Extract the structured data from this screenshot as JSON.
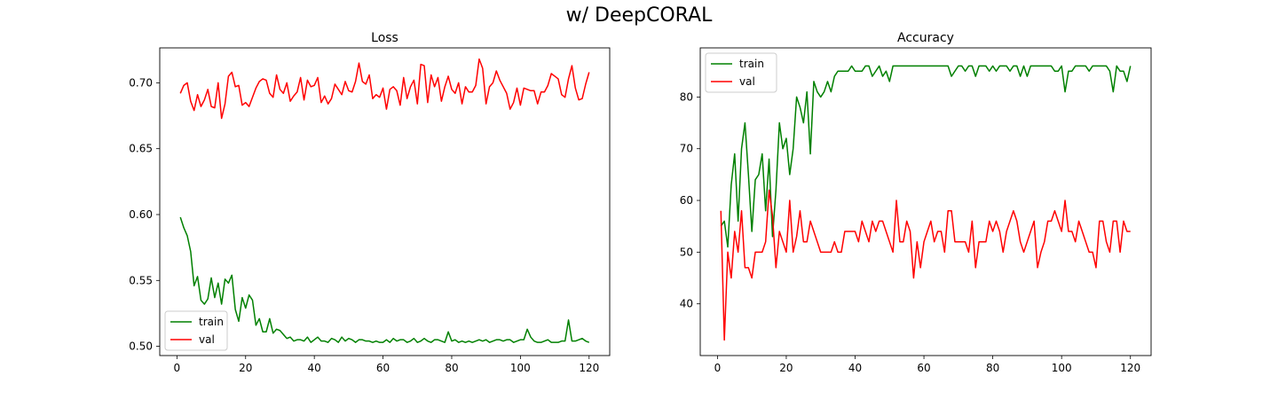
{
  "figure": {
    "title": "w/ DeepCORAL"
  },
  "chart_data": [
    {
      "type": "line",
      "title": "Loss",
      "xlabel": "",
      "ylabel": "",
      "xlim": [
        -5,
        126
      ],
      "ylim": [
        0.493,
        0.7265
      ],
      "xticks": [
        0,
        20,
        40,
        60,
        80,
        100,
        120
      ],
      "yticks": [
        0.5,
        0.55,
        0.6,
        0.65,
        0.7
      ],
      "ytick_labels": [
        "0.50",
        "0.55",
        "0.60",
        "0.65",
        "0.70"
      ],
      "grid": false,
      "legend": "lower-left",
      "x": [
        1,
        2,
        3,
        4,
        5,
        6,
        7,
        8,
        9,
        10,
        11,
        12,
        13,
        14,
        15,
        16,
        17,
        18,
        19,
        20,
        21,
        22,
        23,
        24,
        25,
        26,
        27,
        28,
        29,
        30,
        31,
        32,
        33,
        34,
        35,
        36,
        37,
        38,
        39,
        40,
        41,
        42,
        43,
        44,
        45,
        46,
        47,
        48,
        49,
        50,
        51,
        52,
        53,
        54,
        55,
        56,
        57,
        58,
        59,
        60,
        61,
        62,
        63,
        64,
        65,
        66,
        67,
        68,
        69,
        70,
        71,
        72,
        73,
        74,
        75,
        76,
        77,
        78,
        79,
        80,
        81,
        82,
        83,
        84,
        85,
        86,
        87,
        88,
        89,
        90,
        91,
        92,
        93,
        94,
        95,
        96,
        97,
        98,
        99,
        100,
        101,
        102,
        103,
        104,
        105,
        106,
        107,
        108,
        109,
        110,
        111,
        112,
        113,
        114,
        115,
        116,
        117,
        118,
        119,
        120
      ],
      "series": [
        {
          "name": "train",
          "color": "#008000",
          "values": [
            0.598,
            0.59,
            0.584,
            0.572,
            0.546,
            0.553,
            0.535,
            0.532,
            0.536,
            0.552,
            0.537,
            0.548,
            0.532,
            0.551,
            0.548,
            0.554,
            0.528,
            0.519,
            0.537,
            0.529,
            0.539,
            0.535,
            0.516,
            0.521,
            0.511,
            0.511,
            0.521,
            0.51,
            0.513,
            0.512,
            0.509,
            0.506,
            0.507,
            0.504,
            0.505,
            0.505,
            0.504,
            0.507,
            0.503,
            0.505,
            0.507,
            0.504,
            0.504,
            0.503,
            0.506,
            0.505,
            0.503,
            0.507,
            0.504,
            0.506,
            0.505,
            0.503,
            0.505,
            0.505,
            0.504,
            0.504,
            0.503,
            0.504,
            0.503,
            0.503,
            0.505,
            0.503,
            0.506,
            0.504,
            0.505,
            0.505,
            0.503,
            0.504,
            0.506,
            0.503,
            0.504,
            0.506,
            0.504,
            0.503,
            0.505,
            0.505,
            0.504,
            0.503,
            0.511,
            0.504,
            0.505,
            0.503,
            0.504,
            0.503,
            0.504,
            0.503,
            0.504,
            0.505,
            0.504,
            0.505,
            0.503,
            0.504,
            0.505,
            0.505,
            0.504,
            0.505,
            0.505,
            0.503,
            0.504,
            0.505,
            0.505,
            0.513,
            0.507,
            0.504,
            0.503,
            0.503,
            0.504,
            0.505,
            0.503,
            0.503,
            0.503,
            0.504,
            0.504,
            0.52,
            0.504,
            0.504,
            0.505,
            0.506,
            0.504,
            0.503
          ]
        },
        {
          "name": "val",
          "color": "#ff0000",
          "values": [
            0.692,
            0.698,
            0.7,
            0.686,
            0.679,
            0.691,
            0.682,
            0.687,
            0.695,
            0.682,
            0.681,
            0.7,
            0.673,
            0.684,
            0.705,
            0.708,
            0.697,
            0.698,
            0.683,
            0.685,
            0.682,
            0.689,
            0.696,
            0.701,
            0.703,
            0.702,
            0.692,
            0.689,
            0.706,
            0.695,
            0.692,
            0.7,
            0.686,
            0.69,
            0.693,
            0.704,
            0.687,
            0.702,
            0.697,
            0.698,
            0.704,
            0.685,
            0.69,
            0.684,
            0.688,
            0.699,
            0.695,
            0.691,
            0.701,
            0.694,
            0.693,
            0.701,
            0.715,
            0.701,
            0.699,
            0.706,
            0.688,
            0.691,
            0.689,
            0.696,
            0.68,
            0.695,
            0.697,
            0.694,
            0.683,
            0.704,
            0.688,
            0.697,
            0.702,
            0.684,
            0.714,
            0.713,
            0.685,
            0.706,
            0.697,
            0.704,
            0.686,
            0.697,
            0.705,
            0.695,
            0.692,
            0.7,
            0.684,
            0.697,
            0.693,
            0.693,
            0.698,
            0.718,
            0.711,
            0.684,
            0.697,
            0.7,
            0.709,
            0.702,
            0.697,
            0.692,
            0.68,
            0.685,
            0.696,
            0.683,
            0.696,
            0.695,
            0.694,
            0.694,
            0.684,
            0.693,
            0.693,
            0.698,
            0.707,
            0.705,
            0.703,
            0.691,
            0.689,
            0.703,
            0.713,
            0.696,
            0.687,
            0.688,
            0.699,
            0.708
          ]
        }
      ]
    },
    {
      "type": "line",
      "title": "Accuracy",
      "xlabel": "",
      "ylabel": "",
      "xlim": [
        -5,
        126
      ],
      "ylim": [
        30,
        89.5
      ],
      "xticks": [
        0,
        20,
        40,
        60,
        80,
        100,
        120
      ],
      "yticks": [
        40,
        50,
        60,
        70,
        80
      ],
      "ytick_labels": [
        "40",
        "50",
        "60",
        "70",
        "80"
      ],
      "grid": false,
      "legend": "upper-left",
      "x": [
        1,
        2,
        3,
        4,
        5,
        6,
        7,
        8,
        9,
        10,
        11,
        12,
        13,
        14,
        15,
        16,
        17,
        18,
        19,
        20,
        21,
        22,
        23,
        24,
        25,
        26,
        27,
        28,
        29,
        30,
        31,
        32,
        33,
        34,
        35,
        36,
        37,
        38,
        39,
        40,
        41,
        42,
        43,
        44,
        45,
        46,
        47,
        48,
        49,
        50,
        51,
        52,
        53,
        54,
        55,
        56,
        57,
        58,
        59,
        60,
        61,
        62,
        63,
        64,
        65,
        66,
        67,
        68,
        69,
        70,
        71,
        72,
        73,
        74,
        75,
        76,
        77,
        78,
        79,
        80,
        81,
        82,
        83,
        84,
        85,
        86,
        87,
        88,
        89,
        90,
        91,
        92,
        93,
        94,
        95,
        96,
        97,
        98,
        99,
        100,
        101,
        102,
        103,
        104,
        105,
        106,
        107,
        108,
        109,
        110,
        111,
        112,
        113,
        114,
        115,
        116,
        117,
        118,
        119,
        120
      ],
      "series": [
        {
          "name": "train",
          "color": "#008000",
          "values": [
            55,
            56,
            51,
            63,
            69,
            56,
            70,
            75,
            65,
            54,
            64,
            65,
            69,
            58,
            68,
            53,
            62,
            75,
            70,
            72,
            65,
            70,
            80,
            78,
            75,
            81,
            69,
            83,
            81,
            80,
            81,
            83,
            81,
            84,
            85,
            85,
            85,
            85,
            86,
            85,
            85,
            85,
            86,
            86,
            84,
            85,
            86,
            84,
            85,
            83,
            86,
            86,
            86,
            86,
            86,
            86,
            86,
            86,
            86,
            86,
            86,
            86,
            86,
            86,
            86,
            86,
            86,
            84,
            85,
            86,
            86,
            85,
            86,
            86,
            84,
            86,
            86,
            86,
            85,
            86,
            85,
            86,
            86,
            86,
            85,
            86,
            86,
            84,
            86,
            84,
            86,
            86,
            86,
            86,
            86,
            86,
            86,
            85,
            85,
            86,
            81,
            85,
            85,
            86,
            86,
            86,
            86,
            85,
            86,
            86,
            86,
            86,
            86,
            85,
            81,
            86,
            85,
            85,
            83,
            86
          ]
        },
        {
          "name": "val",
          "color": "#ff0000",
          "values": [
            58,
            33,
            50,
            45,
            54,
            50,
            58,
            47,
            47,
            45,
            50,
            50,
            50,
            52,
            62,
            57,
            47,
            54,
            52,
            50,
            60,
            50,
            53,
            58,
            52,
            52,
            56,
            54,
            52,
            50,
            50,
            50,
            50,
            52,
            50,
            50,
            54,
            54,
            54,
            54,
            52,
            56,
            54,
            52,
            56,
            54,
            56,
            56,
            54,
            52,
            50,
            60,
            52,
            52,
            56,
            54,
            45,
            52,
            47,
            52,
            54,
            56,
            52,
            54,
            54,
            50,
            58,
            58,
            52,
            52,
            52,
            52,
            50,
            56,
            47,
            52,
            52,
            52,
            56,
            54,
            56,
            54,
            50,
            54,
            56,
            58,
            56,
            52,
            50,
            52,
            54,
            56,
            47,
            50,
            52,
            56,
            56,
            58,
            56,
            54,
            60,
            54,
            54,
            52,
            56,
            54,
            52,
            50,
            50,
            47,
            56,
            56,
            52,
            50,
            56,
            56,
            50,
            56,
            54,
            54
          ]
        }
      ]
    }
  ]
}
